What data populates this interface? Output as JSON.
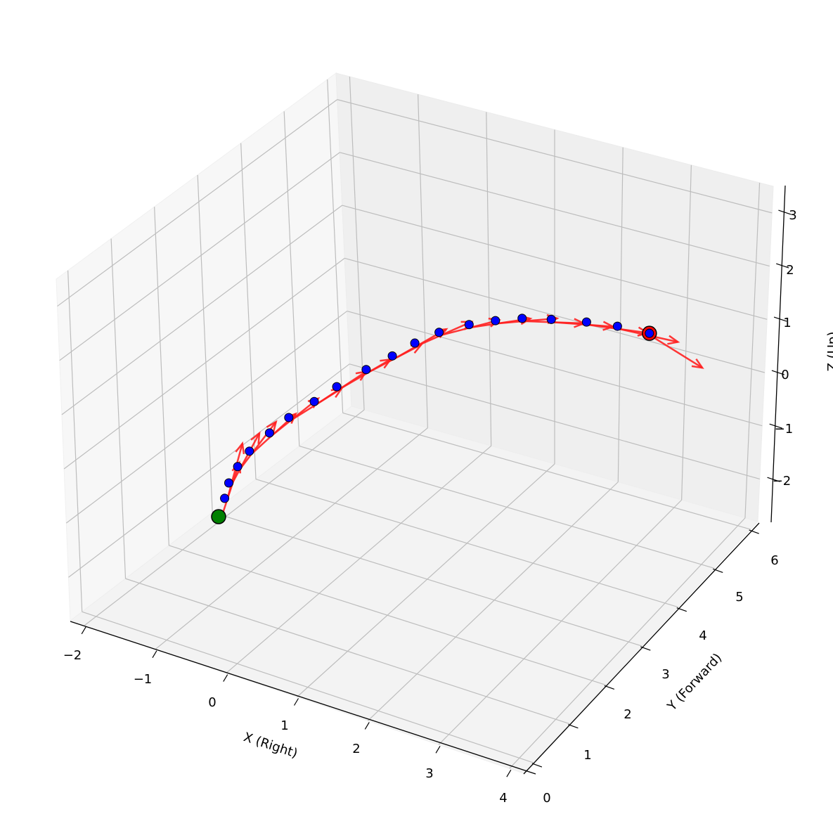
{
  "chart_data": {
    "type": "scatter3d",
    "title": "",
    "xlabel": "X (Right)",
    "ylabel": "Y (Forward)",
    "zlabel": "Z (Up)",
    "xlim": [
      -2.2,
      4.2
    ],
    "ylim": [
      -0.27,
      6.2
    ],
    "zlim": [
      -2.8,
      3.5
    ],
    "grid": true,
    "x_ticks": [
      "−2",
      "−1",
      "0",
      "1",
      "2",
      "3",
      "4"
    ],
    "y_ticks": [
      "0",
      "1",
      "2",
      "3",
      "4",
      "5",
      "6"
    ],
    "z_ticks": [
      "−2",
      "−1",
      "0",
      "1",
      "2",
      "3"
    ],
    "start_point": {
      "x": 0,
      "y": 0,
      "z": 0,
      "color": "#008000"
    },
    "end_point": {
      "x": 2.73,
      "y": 6.43,
      "z": 0,
      "color": "#ff0000"
    },
    "points": [
      [
        0,
        0,
        0
      ],
      [
        -0.12,
        0.4,
        0
      ],
      [
        -0.23,
        0.73,
        0
      ],
      [
        -0.3,
        1.11,
        0
      ],
      [
        -0.33,
        1.49,
        0
      ],
      [
        -0.3,
        1.98,
        0
      ],
      [
        -0.25,
        2.41,
        0
      ],
      [
        -0.14,
        2.89,
        0
      ],
      [
        -0.05,
        3.33,
        0
      ],
      [
        0.09,
        3.86,
        0
      ],
      [
        0.23,
        4.3,
        0
      ],
      [
        0.34,
        4.7,
        0
      ],
      [
        0.49,
        5.07,
        0
      ],
      [
        0.73,
        5.42,
        0
      ],
      [
        0.97,
        5.67,
        0
      ],
      [
        1.23,
        5.89,
        0
      ],
      [
        1.55,
        6.06,
        0
      ],
      [
        1.95,
        6.24,
        0
      ],
      [
        2.32,
        6.36,
        0
      ],
      [
        2.73,
        6.43,
        0
      ]
    ],
    "point_color": "#0000ff",
    "arrow_color": "#ff2020"
  }
}
